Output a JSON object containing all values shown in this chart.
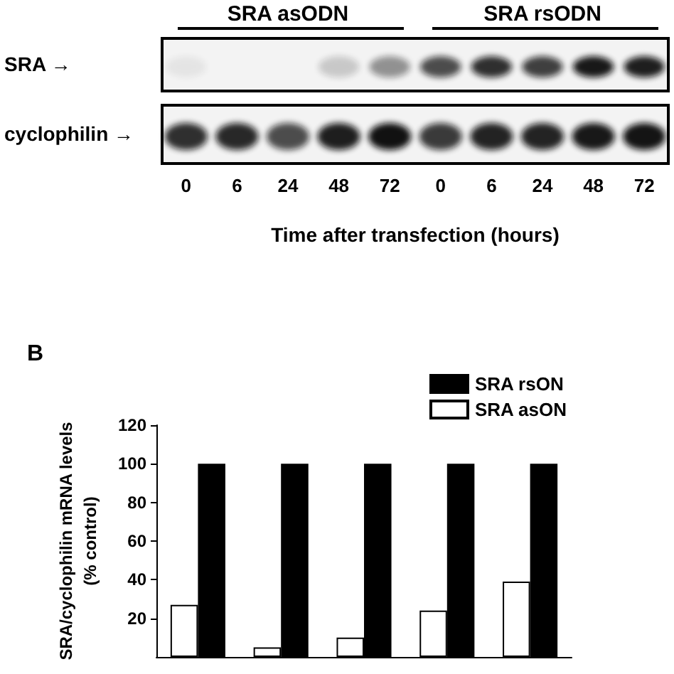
{
  "chart_data": [
    {
      "type": "other",
      "categories": [
        "0",
        "6",
        "24",
        "48",
        "72",
        "0",
        "6",
        "24",
        "48",
        "72"
      ],
      "xlabel": "Time after transfection (hours)",
      "annotations": [
        "SRA asODN",
        "SRA rsODN",
        "SRA →",
        "cyclophilin →"
      ]
    },
    {
      "type": "bar",
      "title": "B",
      "ylabel": "SRA/cyclophilin mRNA levels\n(% control)",
      "categories": [
        null,
        null,
        null,
        null,
        null
      ],
      "series": [
        {
          "name": "SRA asON",
          "color": "#ffffff",
          "values": [
            27,
            5,
            10,
            24,
            39
          ]
        },
        {
          "name": "SRA rsON",
          "color": "#000000",
          "values": [
            100,
            100,
            100,
            100,
            100
          ]
        }
      ],
      "ylim": [
        0,
        120
      ],
      "yticks": [
        20,
        40,
        60,
        80,
        100,
        120
      ],
      "legend": "top right"
    }
  ]
}
